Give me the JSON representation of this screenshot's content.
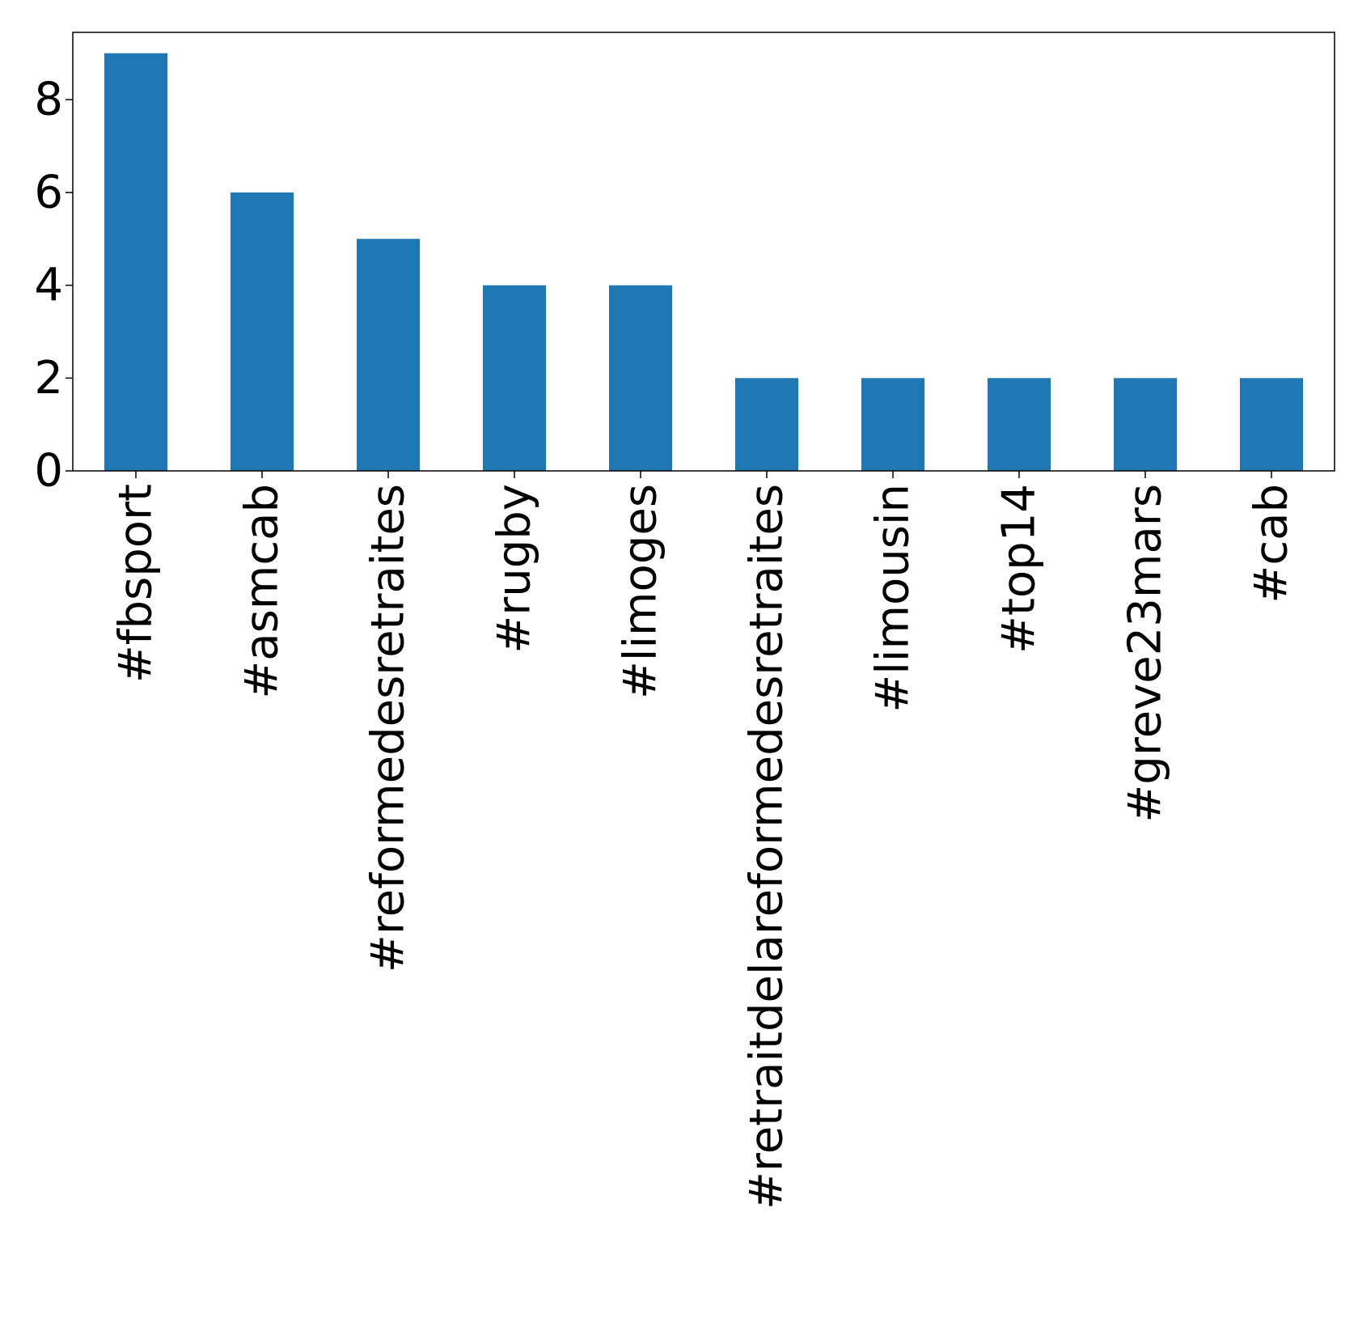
{
  "chart_data": {
    "type": "bar",
    "title": "",
    "xlabel": "",
    "ylabel": "",
    "categories": [
      "#fbsport",
      "#asmcab",
      "#reformedesretraites",
      "#rugby",
      "#limoges",
      "#retraitdelareformedesretraites",
      "#limousin",
      "#top14",
      "#greve23mars",
      "#cab"
    ],
    "values": [
      9,
      6,
      5,
      4,
      4,
      2,
      2,
      2,
      2,
      2
    ],
    "ylim": [
      0,
      9.45
    ],
    "yticks": [
      0,
      2,
      4,
      6,
      8
    ],
    "grid": false,
    "legend": "none",
    "bar_color": "#1f77b4"
  }
}
